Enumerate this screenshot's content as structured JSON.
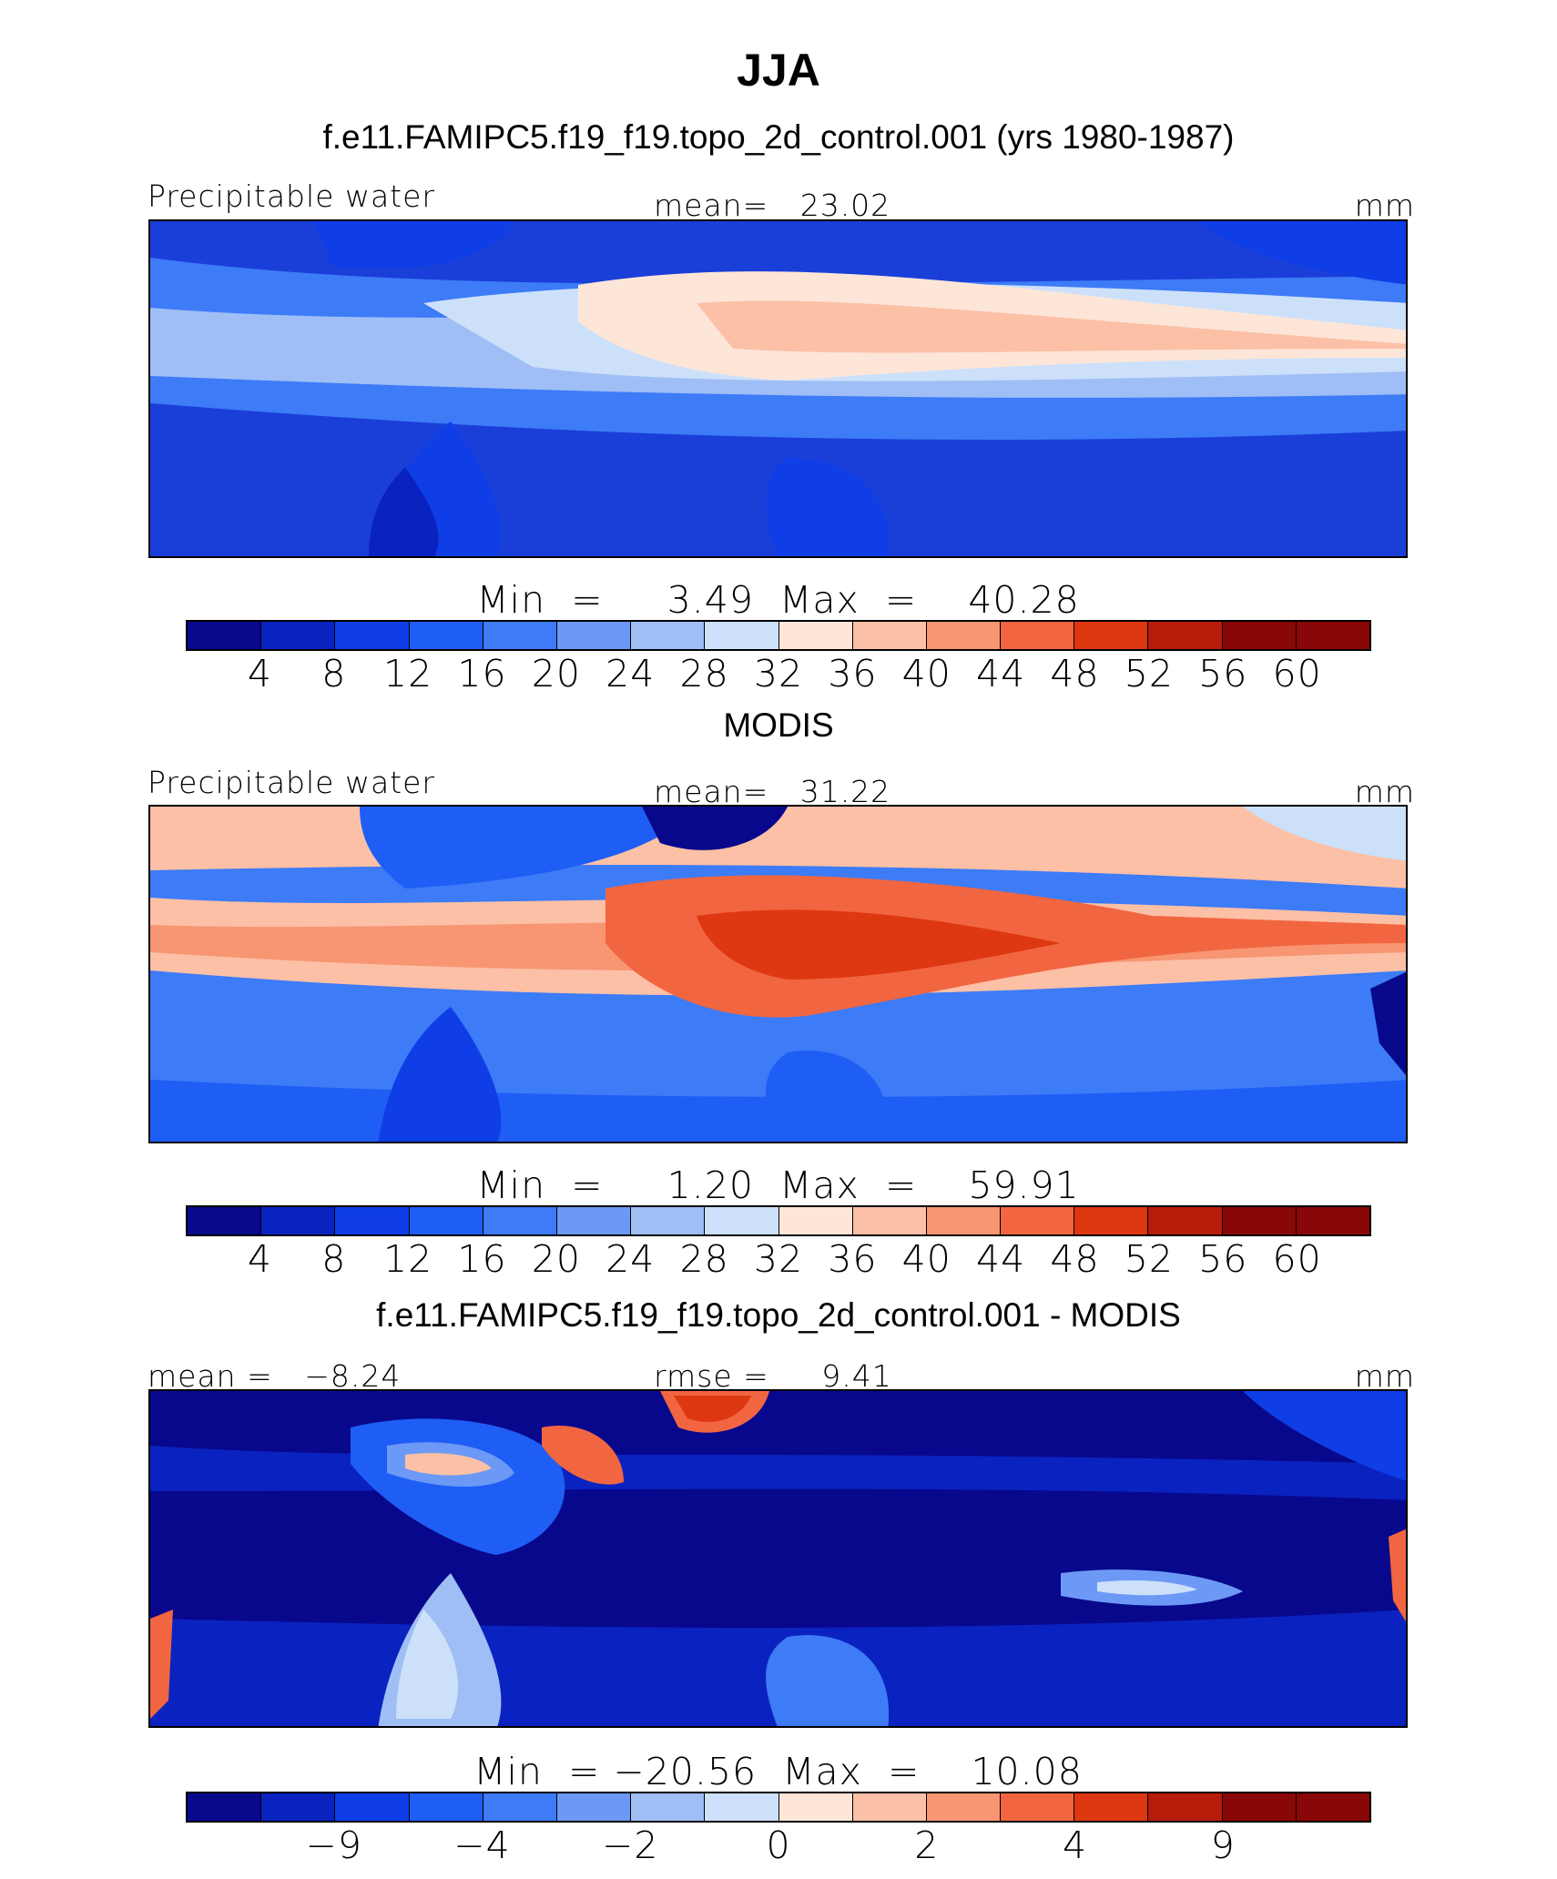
{
  "title": "JJA",
  "palette": [
    "#08088c",
    "#0a22c0",
    "#0f3ee6",
    "#1f5ef5",
    "#3d7bf7",
    "#6c99f5",
    "#9fbef6",
    "#cde0fa",
    "#fde6d8",
    "#fcc0a6",
    "#f89572",
    "#f16640",
    "#de3812",
    "#b71c0b",
    "#8a0707"
  ],
  "panels": [
    {
      "title": "f.e11.FAMIPC5.f19_f19.topo_2d_control.001 (yrs 1980-1987)",
      "left_label": "Precipitable water",
      "center_label": "mean=   23.02",
      "units": "mm",
      "minmax": "Min  =     3.49  Max  =    40.28",
      "colorbar_ticks": [
        "4",
        "8",
        "12",
        "16",
        "20",
        "24",
        "28",
        "32",
        "36",
        "40",
        "44",
        "48",
        "52",
        "56",
        "60"
      ]
    },
    {
      "title": "MODIS",
      "left_label": "Precipitable water",
      "center_label": "mean=   31.22",
      "units": "mm",
      "minmax": "Min  =     1.20  Max  =    59.91",
      "colorbar_ticks": [
        "4",
        "8",
        "12",
        "16",
        "20",
        "24",
        "28",
        "32",
        "36",
        "40",
        "44",
        "48",
        "52",
        "56",
        "60"
      ]
    },
    {
      "title": "f.e11.FAMIPC5.f19_f19.topo_2d_control.001 - MODIS",
      "left_label": "mean =   −8.24",
      "center_label": "rmse =     9.41",
      "units": "mm",
      "minmax": "Min  = −20.56  Max  =    10.08",
      "colorbar_ticks": [
        "−9",
        "−4",
        "−2",
        "0",
        "2",
        "4",
        "9"
      ]
    }
  ]
}
